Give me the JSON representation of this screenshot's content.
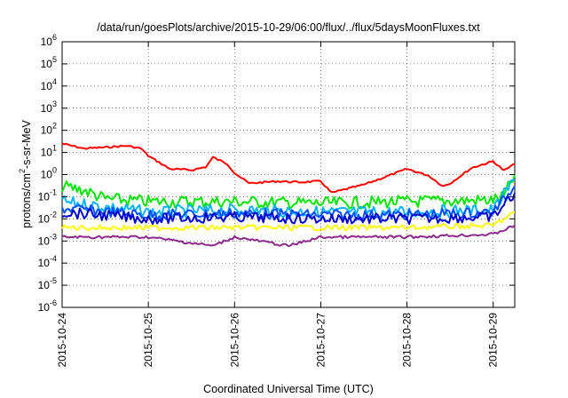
{
  "chart_data": {
    "type": "line",
    "title": "/data/run/goesPlots/archive/2015-10-29/06:00/flux/../flux/5daysMoonFluxes.txt",
    "xlabel": "Coordinated Universal Time (UTC)",
    "ylabel": "protons/cm2-s-sr-MeV",
    "ylabel_parts": {
      "before": "protons/cm",
      "sup": "2",
      "after": "-s-sr-MeV"
    },
    "y_scale": "log",
    "ylim": [
      1e-06,
      1000000.0
    ],
    "y_ticks": [
      {
        "base": "10",
        "exp": "-6",
        "value": 1e-06
      },
      {
        "base": "10",
        "exp": "-5",
        "value": 1e-05
      },
      {
        "base": "10",
        "exp": "-4",
        "value": 0.0001
      },
      {
        "base": "10",
        "exp": "-3",
        "value": 0.001
      },
      {
        "base": "10",
        "exp": "-2",
        "value": 0.01
      },
      {
        "base": "10",
        "exp": "-1",
        "value": 0.1
      },
      {
        "base": "10",
        "exp": "0",
        "value": 1
      },
      {
        "base": "10",
        "exp": "1",
        "value": 10.0
      },
      {
        "base": "10",
        "exp": "2",
        "value": 100.0
      },
      {
        "base": "10",
        "exp": "3",
        "value": 1000.0
      },
      {
        "base": "10",
        "exp": "4",
        "value": 10000.0
      },
      {
        "base": "10",
        "exp": "5",
        "value": 100000.0
      },
      {
        "base": "10",
        "exp": "6",
        "value": 1000000.0
      }
    ],
    "x_ticks": [
      "2015-10-24",
      "2015-10-25",
      "2015-10-26",
      "2015-10-27",
      "2015-10-28",
      "2015-10-29"
    ],
    "xlim": [
      "2015-10-24 00:00",
      "2015-10-29 06:00"
    ],
    "grid": true,
    "series": [
      {
        "color": "#ff0000",
        "points": [
          [
            "2015-10-24 00:00",
            25
          ],
          [
            "2015-10-24 06:00",
            15
          ],
          [
            "2015-10-24 12:00",
            17
          ],
          [
            "2015-10-24 18:00",
            20
          ],
          [
            "2015-10-24 22:00",
            15
          ],
          [
            "2015-10-25 00:00",
            7
          ],
          [
            "2015-10-25 06:00",
            1.8
          ],
          [
            "2015-10-25 12:00",
            1.6
          ],
          [
            "2015-10-25 16:00",
            2.2
          ],
          [
            "2015-10-25 18:00",
            6
          ],
          [
            "2015-10-25 22:00",
            3
          ],
          [
            "2015-10-26 00:00",
            1.2
          ],
          [
            "2015-10-26 04:00",
            0.4
          ],
          [
            "2015-10-26 12:00",
            0.5
          ],
          [
            "2015-10-26 18:00",
            0.45
          ],
          [
            "2015-10-27 00:00",
            0.5
          ],
          [
            "2015-10-27 03:00",
            0.15
          ],
          [
            "2015-10-27 12:00",
            0.35
          ],
          [
            "2015-10-27 16:00",
            0.6
          ],
          [
            "2015-10-28 00:00",
            1.8
          ],
          [
            "2015-10-28 06:00",
            0.9
          ],
          [
            "2015-10-28 10:00",
            0.3
          ],
          [
            "2015-10-28 12:00",
            0.4
          ],
          [
            "2015-10-28 18:00",
            2
          ],
          [
            "2015-10-29 00:00",
            4
          ],
          [
            "2015-10-29 03:00",
            1.5
          ],
          [
            "2015-10-29 06:00",
            3
          ]
        ]
      },
      {
        "color": "#00e600",
        "points": [
          [
            "2015-10-24 00:00",
            0.3
          ],
          [
            "2015-10-24 06:00",
            0.2
          ],
          [
            "2015-10-24 12:00",
            0.08
          ],
          [
            "2015-10-25 00:00",
            0.06
          ],
          [
            "2015-10-26 00:00",
            0.06
          ],
          [
            "2015-10-27 00:00",
            0.05
          ],
          [
            "2015-10-28 00:00",
            0.06
          ],
          [
            "2015-10-29 00:00",
            0.07
          ],
          [
            "2015-10-29 03:00",
            0.1
          ],
          [
            "2015-10-29 06:00",
            1.0
          ]
        ]
      },
      {
        "color": "#00b4ff",
        "points": [
          [
            "2015-10-24 00:00",
            0.06
          ],
          [
            "2015-10-25 00:00",
            0.02
          ],
          [
            "2015-10-26 00:00",
            0.025
          ],
          [
            "2015-10-27 00:00",
            0.02
          ],
          [
            "2015-10-28 00:00",
            0.02
          ],
          [
            "2015-10-29 00:00",
            0.025
          ],
          [
            "2015-10-29 06:00",
            0.6
          ]
        ]
      },
      {
        "color": "#0050ff",
        "points": [
          [
            "2015-10-24 00:00",
            0.03
          ],
          [
            "2015-10-25 00:00",
            0.015
          ],
          [
            "2015-10-26 00:00",
            0.018
          ],
          [
            "2015-10-27 00:00",
            0.015
          ],
          [
            "2015-10-28 00:00",
            0.015
          ],
          [
            "2015-10-29 00:00",
            0.02
          ],
          [
            "2015-10-29 06:00",
            0.3
          ]
        ]
      },
      {
        "color": "#0000cc",
        "points": [
          [
            "2015-10-24 00:00",
            0.02
          ],
          [
            "2015-10-25 00:00",
            0.01
          ],
          [
            "2015-10-26 00:00",
            0.012
          ],
          [
            "2015-10-27 00:00",
            0.01
          ],
          [
            "2015-10-28 00:00",
            0.01
          ],
          [
            "2015-10-29 00:00",
            0.012
          ],
          [
            "2015-10-29 06:00",
            0.15
          ]
        ]
      },
      {
        "color": "#ffff00",
        "points": [
          [
            "2015-10-24 00:00",
            0.004
          ],
          [
            "2015-10-25 00:00",
            0.004
          ],
          [
            "2015-10-26 00:00",
            0.004
          ],
          [
            "2015-10-27 00:00",
            0.004
          ],
          [
            "2015-10-28 00:00",
            0.004
          ],
          [
            "2015-10-29 00:00",
            0.005
          ],
          [
            "2015-10-29 06:00",
            0.02
          ]
        ]
      },
      {
        "color": "#8b2a8b",
        "points": [
          [
            "2015-10-24 00:00",
            0.0015
          ],
          [
            "2015-10-25 00:00",
            0.0015
          ],
          [
            "2015-10-25 18:00",
            0.0006
          ],
          [
            "2015-10-26 00:00",
            0.0015
          ],
          [
            "2015-10-26 15:00",
            0.0006
          ],
          [
            "2015-10-27 00:00",
            0.0015
          ],
          [
            "2015-10-28 00:00",
            0.0015
          ],
          [
            "2015-10-29 00:00",
            0.002
          ],
          [
            "2015-10-29 06:00",
            0.005
          ]
        ]
      }
    ]
  }
}
